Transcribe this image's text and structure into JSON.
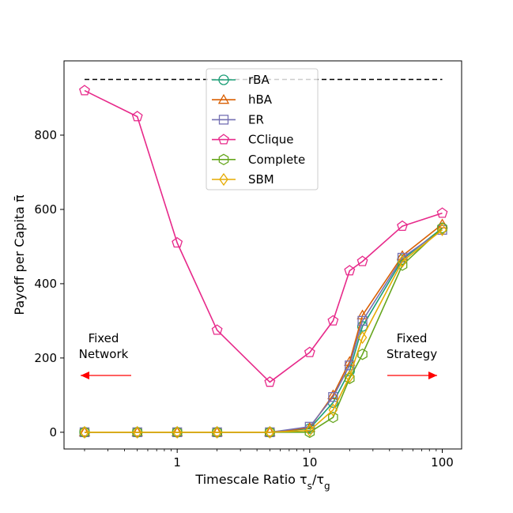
{
  "chart_data": {
    "type": "line",
    "title": "",
    "xlabel": "Timescale Ratio τ",
    "xlabel_sub1": "s",
    "xlabel_mid": "/τ",
    "xlabel_sub2": "g",
    "ylabel": "Payoff per Capita π̄",
    "xscale": "log",
    "xlim": [
      0.14,
      140
    ],
    "ylim": [
      -45,
      1000
    ],
    "xticks": [
      1,
      10,
      100
    ],
    "xtick_labels": [
      "1",
      "10",
      "100"
    ],
    "yticks": [
      0,
      200,
      400,
      600,
      800
    ],
    "ytick_labels": [
      "0",
      "200",
      "400",
      "600",
      "800"
    ],
    "grid": false,
    "legend_position": "top-center",
    "reference_line": {
      "y": 950,
      "x_range": [
        0.2,
        100
      ],
      "style": "dashed",
      "color": "#000000"
    },
    "annotations": [
      {
        "lines": [
          "Fixed",
          "Network"
        ],
        "arrow": "left",
        "color": "#ff0000"
      },
      {
        "lines": [
          "Fixed",
          "Strategy"
        ],
        "arrow": "right",
        "color": "#ff0000"
      }
    ],
    "x": [
      0.2,
      0.5,
      1,
      2,
      5,
      10,
      15,
      20,
      25,
      50,
      100
    ],
    "series": [
      {
        "name": "rBA",
        "color": "#1b9e77",
        "marker": "circle",
        "values": [
          0,
          0,
          0,
          0,
          0,
          10,
          80,
          165,
          285,
          465,
          550
        ]
      },
      {
        "name": "hBA",
        "color": "#d95f02",
        "marker": "triangle",
        "values": [
          0,
          0,
          0,
          0,
          0,
          12,
          100,
          190,
          315,
          475,
          560
        ]
      },
      {
        "name": "ER",
        "color": "#7570b3",
        "marker": "square",
        "values": [
          0,
          0,
          0,
          0,
          0,
          15,
          95,
          180,
          300,
          470,
          545
        ]
      },
      {
        "name": "CClique",
        "color": "#e7298a",
        "marker": "pentagon",
        "values": [
          920,
          850,
          510,
          275,
          135,
          215,
          300,
          435,
          460,
          555,
          590
        ]
      },
      {
        "name": "Complete",
        "color": "#66a61e",
        "marker": "hexagon",
        "values": [
          0,
          0,
          0,
          0,
          0,
          0,
          40,
          145,
          210,
          450,
          550
        ]
      },
      {
        "name": "SBM",
        "color": "#e6ab02",
        "marker": "diamond",
        "values": [
          0,
          0,
          0,
          0,
          0,
          5,
          60,
          150,
          255,
          460,
          545
        ]
      }
    ]
  }
}
